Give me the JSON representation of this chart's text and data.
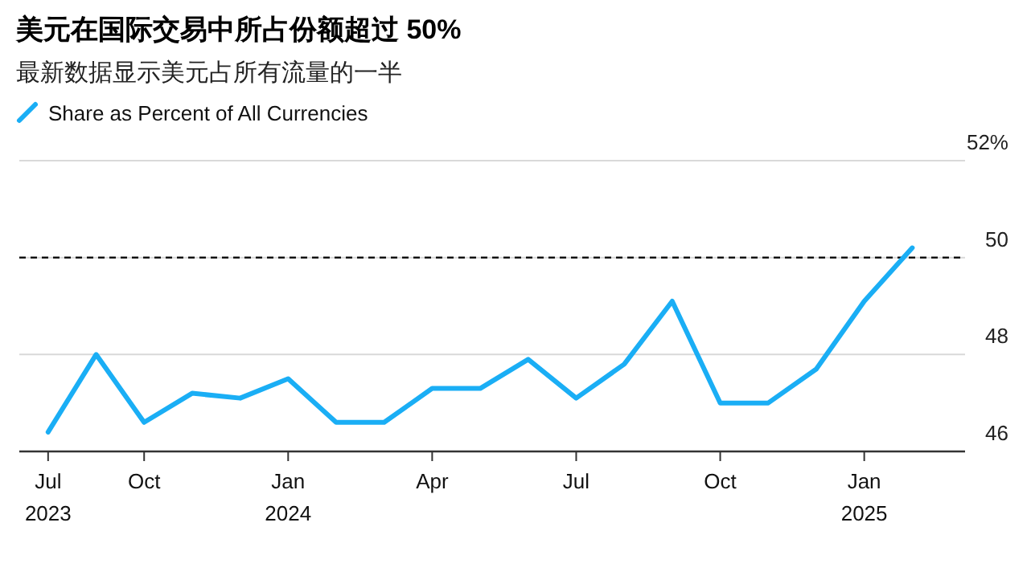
{
  "chart_data": {
    "type": "line",
    "title": "美元在国际交易中所占份额超过 50%",
    "subtitle": "最新数据显示美元占所有流量的一半",
    "categories": [
      "Jul\n2023",
      null,
      "Oct",
      null,
      null,
      "Jan\n2024",
      null,
      null,
      "Apr",
      null,
      null,
      "Jul",
      null,
      null,
      "Oct",
      null,
      null,
      "Jan\n2025",
      null
    ],
    "series": [
      {
        "name": "Share as Percent of All Currencies",
        "color": "#1aaef5",
        "values": [
          46.4,
          48.0,
          46.6,
          47.2,
          47.1,
          47.5,
          46.6,
          46.6,
          47.3,
          47.3,
          47.9,
          47.1,
          47.8,
          49.1,
          47.0,
          47.0,
          47.7,
          49.1,
          50.2
        ]
      }
    ],
    "ylim": [
      46,
      52
    ],
    "yticks": [
      46,
      48,
      50,
      {
        "value": 52,
        "label": "52%"
      }
    ],
    "grid": "y",
    "legend": "top left",
    "ref_lines": [
      {
        "axis": "y",
        "value": 50,
        "color": "#000000",
        "line_style": "dashed"
      }
    ]
  }
}
